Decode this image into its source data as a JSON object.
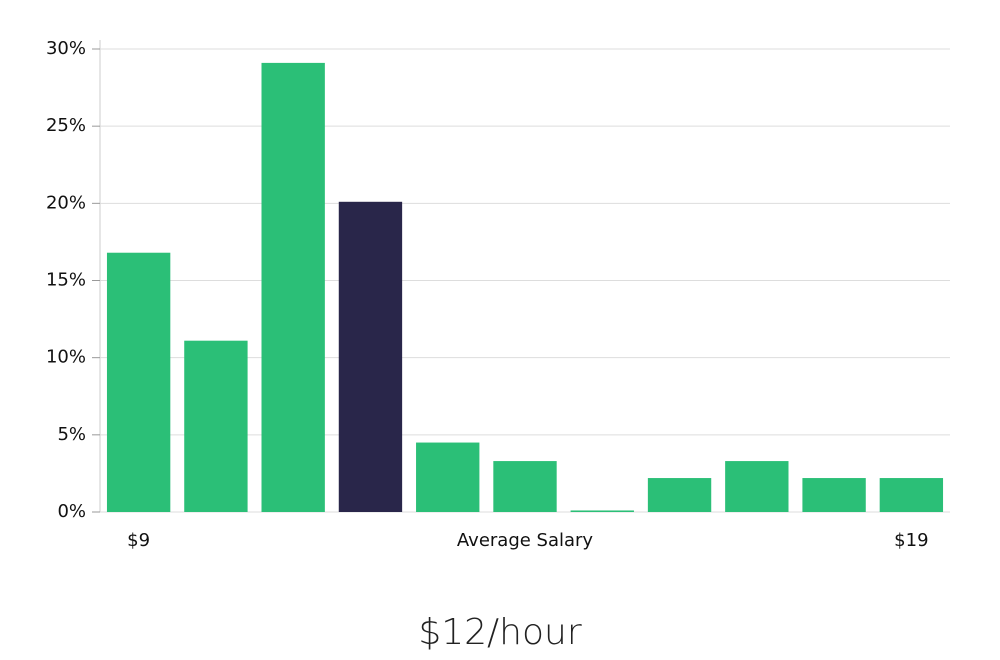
{
  "chart_data": {
    "type": "bar",
    "categories": [
      "$9",
      null,
      null,
      null,
      null,
      null,
      null,
      null,
      null,
      null,
      "$19"
    ],
    "values": [
      16.8,
      11.1,
      29.1,
      20.1,
      4.5,
      3.3,
      0.1,
      2.2,
      3.3,
      2.2,
      2.2
    ],
    "colors": [
      "#2bbf77",
      "#2bbf77",
      "#2bbf77",
      "#29264a",
      "#2bbf77",
      "#2bbf77",
      "#2bbf77",
      "#2bbf77",
      "#2bbf77",
      "#2bbf77",
      "#2bbf77"
    ],
    "x_label": "Average Salary",
    "caption": "$12/hour",
    "ylim": [
      0,
      30
    ],
    "yticks": [
      {
        "value": 0,
        "label": "0%"
      },
      {
        "value": 5,
        "label": "5%"
      },
      {
        "value": 10,
        "label": "10%"
      },
      {
        "value": 15,
        "label": "15%"
      },
      {
        "value": 20,
        "label": "20%"
      },
      {
        "value": 25,
        "label": "25%"
      },
      {
        "value": 30,
        "label": "30%"
      }
    ],
    "grid": true
  }
}
